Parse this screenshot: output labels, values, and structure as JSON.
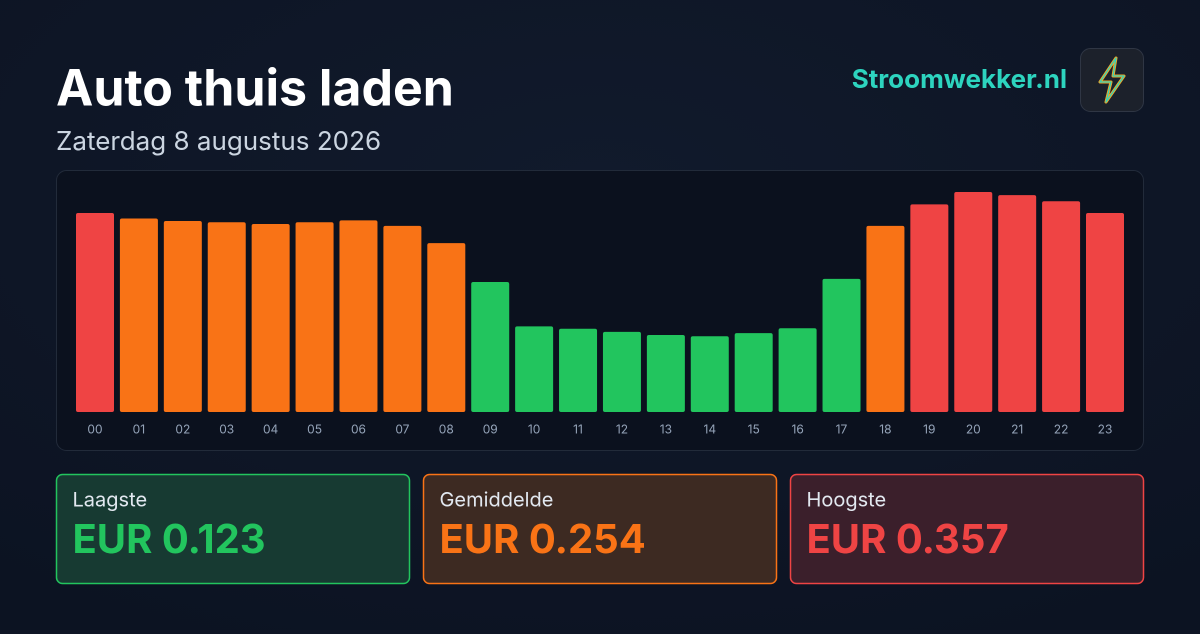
{
  "header": {
    "title": "Auto thuis laden",
    "subtitle": "Zaterdag 8 augustus 2026",
    "brand": "Stroomwekker.nl"
  },
  "chart_data": {
    "type": "bar",
    "categories": [
      "00",
      "01",
      "02",
      "03",
      "04",
      "05",
      "06",
      "07",
      "08",
      "09",
      "10",
      "11",
      "12",
      "13",
      "14",
      "15",
      "16",
      "17",
      "18",
      "19",
      "20",
      "21",
      "22",
      "23"
    ],
    "values": [
      0.323,
      0.314,
      0.31,
      0.308,
      0.305,
      0.308,
      0.311,
      0.302,
      0.274,
      0.211,
      0.139,
      0.135,
      0.13,
      0.125,
      0.123,
      0.128,
      0.136,
      0.216,
      0.302,
      0.337,
      0.357,
      0.352,
      0.342,
      0.323
    ],
    "colors": [
      "#ef4444",
      "#f97316",
      "#f97316",
      "#f97316",
      "#f97316",
      "#f97316",
      "#f97316",
      "#f97316",
      "#f97316",
      "#22c55e",
      "#22c55e",
      "#22c55e",
      "#22c55e",
      "#22c55e",
      "#22c55e",
      "#22c55e",
      "#22c55e",
      "#22c55e",
      "#f97316",
      "#ef4444",
      "#ef4444",
      "#ef4444",
      "#ef4444",
      "#ef4444"
    ]
  },
  "stats": [
    {
      "label": "Laagste",
      "value": "EUR 0.123"
    },
    {
      "label": "Gemiddelde",
      "value": "EUR 0.254"
    },
    {
      "label": "Hoogste",
      "value": "EUR 0.357"
    }
  ]
}
